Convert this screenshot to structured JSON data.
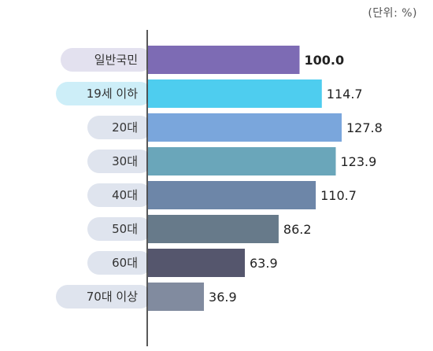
{
  "unit_label": "(단위: %)",
  "chart_data": {
    "type": "bar",
    "orientation": "horizontal",
    "unit": "%",
    "categories": [
      "일반국민",
      "19세 이하",
      "20대",
      "30대",
      "40대",
      "50대",
      "60대",
      "70대 이상"
    ],
    "values": [
      100.0,
      114.7,
      127.8,
      123.9,
      110.7,
      86.2,
      63.9,
      36.9
    ],
    "value_labels": [
      "100.0",
      "114.7",
      "127.8",
      "123.9",
      "110.7",
      "86.2",
      "63.9",
      "36.9"
    ],
    "bold_value_index": 0,
    "bar_colors": [
      "#7d6bb4",
      "#4ecdef",
      "#7aa6dc",
      "#6aa6ba",
      "#6d86a8",
      "#677a8a",
      "#55566d",
      "#818b9f"
    ],
    "pill_colors": [
      "#e3e1ef",
      "#cdeef8",
      "#dfe4ee",
      "#dfe4ee",
      "#dfe4ee",
      "#dfe4ee",
      "#dfe4ee",
      "#dfe4ee"
    ],
    "xlim": [
      0,
      127.8
    ]
  }
}
